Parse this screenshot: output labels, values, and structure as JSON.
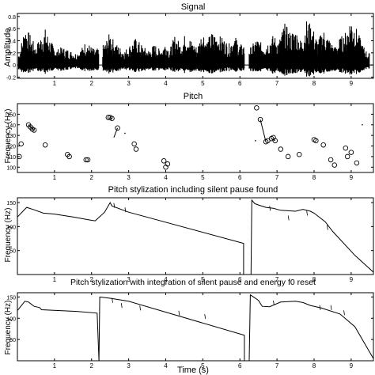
{
  "chart_data": [
    {
      "type": "line",
      "title": "Signal",
      "xlabel": "",
      "ylabel": "Amplitude",
      "xlim": [
        0,
        9.6
      ],
      "ylim": [
        -0.22,
        0.85
      ],
      "xticks": [
        1,
        2,
        3,
        4,
        5,
        6,
        7,
        8,
        9
      ],
      "yticks": [
        -0.2,
        0,
        0.2,
        0.4,
        0.6,
        0.8
      ],
      "ytick_labels": [
        "-0.2",
        "0",
        "0.2",
        "0.4",
        "0.6",
        "0.8"
      ],
      "speech_segments": [
        [
          0.03,
          2.2
        ],
        [
          2.3,
          6.12
        ],
        [
          6.25,
          9.5
        ]
      ],
      "envelope": {
        "x": [
          0.05,
          0.2,
          0.35,
          0.5,
          0.6,
          0.75,
          0.9,
          1.05,
          1.2,
          1.4,
          1.55,
          1.7,
          1.85,
          2.0,
          2.1,
          2.35,
          2.5,
          2.6,
          2.75,
          2.9,
          3.05,
          3.2,
          3.4,
          3.55,
          3.7,
          3.85,
          4.0,
          4.1,
          4.25,
          4.4,
          4.55,
          4.7,
          4.85,
          5.0,
          5.1,
          5.25,
          5.4,
          5.55,
          5.7,
          5.85,
          6.0,
          6.3,
          6.45,
          6.6,
          6.75,
          6.9,
          7.05,
          7.2,
          7.35,
          7.5,
          7.65,
          7.8,
          7.95,
          8.1,
          8.25,
          8.4,
          8.55,
          8.7,
          8.85,
          9.0,
          9.15,
          9.3,
          9.45
        ],
        "max": [
          0.2,
          0.65,
          0.5,
          0.3,
          0.45,
          0.6,
          0.4,
          0.25,
          0.3,
          0.25,
          0.2,
          0.25,
          0.4,
          0.3,
          0.25,
          0.35,
          0.55,
          0.4,
          0.3,
          0.25,
          0.35,
          0.45,
          0.3,
          0.25,
          0.35,
          0.25,
          0.4,
          0.25,
          0.5,
          0.35,
          0.55,
          0.4,
          0.3,
          0.6,
          0.4,
          0.55,
          0.5,
          0.45,
          0.35,
          0.5,
          0.35,
          0.3,
          0.45,
          0.35,
          0.4,
          0.5,
          0.4,
          0.7,
          0.55,
          0.6,
          0.4,
          0.75,
          0.65,
          0.4,
          0.6,
          0.45,
          0.3,
          0.45,
          0.55,
          0.82,
          0.6,
          0.35,
          0.2
        ],
        "min": [
          -0.1,
          -0.15,
          -0.12,
          -0.08,
          -0.12,
          -0.15,
          -0.1,
          -0.08,
          -0.1,
          -0.08,
          -0.06,
          -0.08,
          -0.12,
          -0.1,
          -0.08,
          -0.1,
          -0.15,
          -0.12,
          -0.1,
          -0.08,
          -0.1,
          -0.12,
          -0.1,
          -0.08,
          -0.1,
          -0.08,
          -0.12,
          -0.08,
          -0.12,
          -0.1,
          -0.15,
          -0.12,
          -0.1,
          -0.15,
          -0.12,
          -0.15,
          -0.12,
          -0.12,
          -0.1,
          -0.12,
          -0.1,
          -0.1,
          -0.12,
          -0.1,
          -0.12,
          -0.15,
          -0.12,
          -0.18,
          -0.15,
          -0.16,
          -0.12,
          -0.2,
          -0.18,
          -0.12,
          -0.16,
          -0.12,
          -0.1,
          -0.12,
          -0.15,
          -0.2,
          -0.15,
          -0.1,
          -0.06
        ]
      }
    },
    {
      "type": "scatter",
      "title": "Pitch",
      "xlabel": "",
      "ylabel": "Frequency (Hz)",
      "xlim": [
        0,
        9.6
      ],
      "ylim": [
        95,
        160
      ],
      "xticks": [
        1,
        2,
        3,
        4,
        5,
        6,
        7,
        8,
        9
      ],
      "yticks": [
        100,
        110,
        120,
        130,
        140,
        150
      ],
      "points": [
        [
          0.05,
          110
        ],
        [
          0.1,
          122
        ],
        [
          0.3,
          140
        ],
        [
          0.35,
          138
        ],
        [
          0.4,
          136
        ],
        [
          0.45,
          135
        ],
        [
          0.75,
          121
        ],
        [
          1.35,
          112
        ],
        [
          1.4,
          110
        ],
        [
          1.85,
          107
        ],
        [
          1.9,
          107
        ],
        [
          2.45,
          147
        ],
        [
          2.5,
          147
        ],
        [
          2.55,
          146
        ],
        [
          2.7,
          137
        ],
        [
          3.15,
          122
        ],
        [
          3.2,
          117
        ],
        [
          3.95,
          106
        ],
        [
          4.0,
          100
        ],
        [
          4.05,
          103
        ],
        [
          6.45,
          156
        ],
        [
          6.55,
          145
        ],
        [
          6.7,
          124
        ],
        [
          6.75,
          125
        ],
        [
          6.85,
          127
        ],
        [
          6.9,
          128
        ],
        [
          6.95,
          125
        ],
        [
          7.1,
          117
        ],
        [
          7.3,
          110
        ],
        [
          7.6,
          112
        ],
        [
          8.0,
          126
        ],
        [
          8.05,
          125
        ],
        [
          8.25,
          121
        ],
        [
          8.45,
          107
        ],
        [
          8.55,
          102
        ],
        [
          8.85,
          118
        ],
        [
          8.9,
          110
        ],
        [
          9.0,
          114
        ],
        [
          9.15,
          104
        ]
      ],
      "segments": [
        [
          [
            0.3,
            140
          ],
          [
            0.45,
            135
          ]
        ],
        [
          [
            2.5,
            147
          ],
          [
            2.55,
            146
          ]
        ],
        [
          [
            2.7,
            137
          ],
          [
            2.6,
            128
          ]
        ],
        [
          [
            6.55,
            145
          ],
          [
            6.7,
            124
          ]
        ],
        [
          [
            6.85,
            127
          ],
          [
            6.95,
            125
          ]
        ]
      ],
      "dots": [
        [
          2.9,
          132
        ],
        [
          6.42,
          125
        ],
        [
          9.3,
          140
        ]
      ]
    },
    {
      "type": "line",
      "title": "Pitch stylization including silent pause found",
      "xlabel": "",
      "ylabel": "Frequency (Hz)",
      "xlim": [
        0,
        9.6
      ],
      "ylim": [
        0,
        160
      ],
      "xticks": [
        1,
        2,
        3,
        4,
        5,
        6,
        7,
        8,
        9
      ],
      "yticks": [
        50,
        100,
        150
      ],
      "main_line": [
        [
          [
            0.0,
            120
          ],
          [
            0.25,
            140
          ],
          [
            0.45,
            135
          ],
          [
            0.7,
            128
          ],
          [
            1.0,
            126
          ],
          [
            1.5,
            120
          ],
          [
            2.0,
            113
          ],
          [
            2.1,
            112
          ],
          [
            2.35,
            130
          ],
          [
            2.5,
            150
          ],
          [
            2.55,
            143
          ],
          [
            3.0,
            130
          ],
          [
            6.1,
            65
          ],
          [
            6.1,
            0
          ]
        ],
        [
          [
            6.3,
            0
          ],
          [
            6.32,
            155
          ],
          [
            6.4,
            148
          ],
          [
            6.5,
            145
          ],
          [
            6.7,
            140
          ],
          [
            6.9,
            138
          ],
          [
            7.1,
            134
          ],
          [
            7.5,
            132
          ],
          [
            7.7,
            136
          ],
          [
            7.9,
            132
          ],
          [
            8.0,
            128
          ],
          [
            8.3,
            110
          ],
          [
            8.5,
            90
          ],
          [
            9.1,
            40
          ],
          [
            9.6,
            5
          ]
        ]
      ],
      "ticks_marks": [
        [
          2.6,
          144
        ],
        [
          2.9,
          135
        ],
        [
          6.8,
          138
        ],
        [
          7.3,
          118
        ],
        [
          7.8,
          128
        ],
        [
          8.35,
          98
        ]
      ]
    },
    {
      "type": "line",
      "title": "Pitch stylization with integration of silent pause and energy f0 reset",
      "xlabel": "Time (s)",
      "ylabel": "Frequency (Hz)",
      "xlim": [
        0,
        9.6
      ],
      "ylim": [
        0,
        160
      ],
      "xticks": [
        1,
        2,
        3,
        4,
        5,
        6,
        7,
        8,
        9
      ],
      "yticks": [
        50,
        100,
        150
      ],
      "main_line": [
        [
          [
            0.0,
            118
          ],
          [
            0.2,
            140
          ],
          [
            0.3,
            138
          ],
          [
            0.45,
            128
          ],
          [
            0.6,
            125
          ],
          [
            0.65,
            120
          ],
          [
            1.6,
            116
          ],
          [
            2.15,
            112
          ],
          [
            2.2,
            0
          ]
        ],
        [
          [
            2.2,
            0
          ],
          [
            2.22,
            150
          ],
          [
            2.5,
            147
          ],
          [
            3.0,
            140
          ],
          [
            6.12,
            60
          ],
          [
            6.12,
            0
          ]
        ],
        [
          [
            6.25,
            0
          ],
          [
            6.28,
            155
          ],
          [
            6.4,
            148
          ],
          [
            6.5,
            142
          ],
          [
            6.6,
            128
          ],
          [
            6.8,
            127
          ],
          [
            7.1,
            138
          ],
          [
            7.5,
            140
          ],
          [
            7.7,
            137
          ],
          [
            7.9,
            130
          ],
          [
            8.2,
            124
          ],
          [
            8.7,
            110
          ],
          [
            9.1,
            80
          ],
          [
            9.6,
            5
          ]
        ]
      ],
      "ticks_marks": [
        [
          2.55,
          142
        ],
        [
          2.8,
          130
        ],
        [
          3.3,
          124
        ],
        [
          4.35,
          112
        ],
        [
          5.05,
          104
        ],
        [
          6.9,
          136
        ],
        [
          8.15,
          125
        ],
        [
          8.45,
          125
        ],
        [
          8.8,
          113
        ]
      ]
    }
  ]
}
